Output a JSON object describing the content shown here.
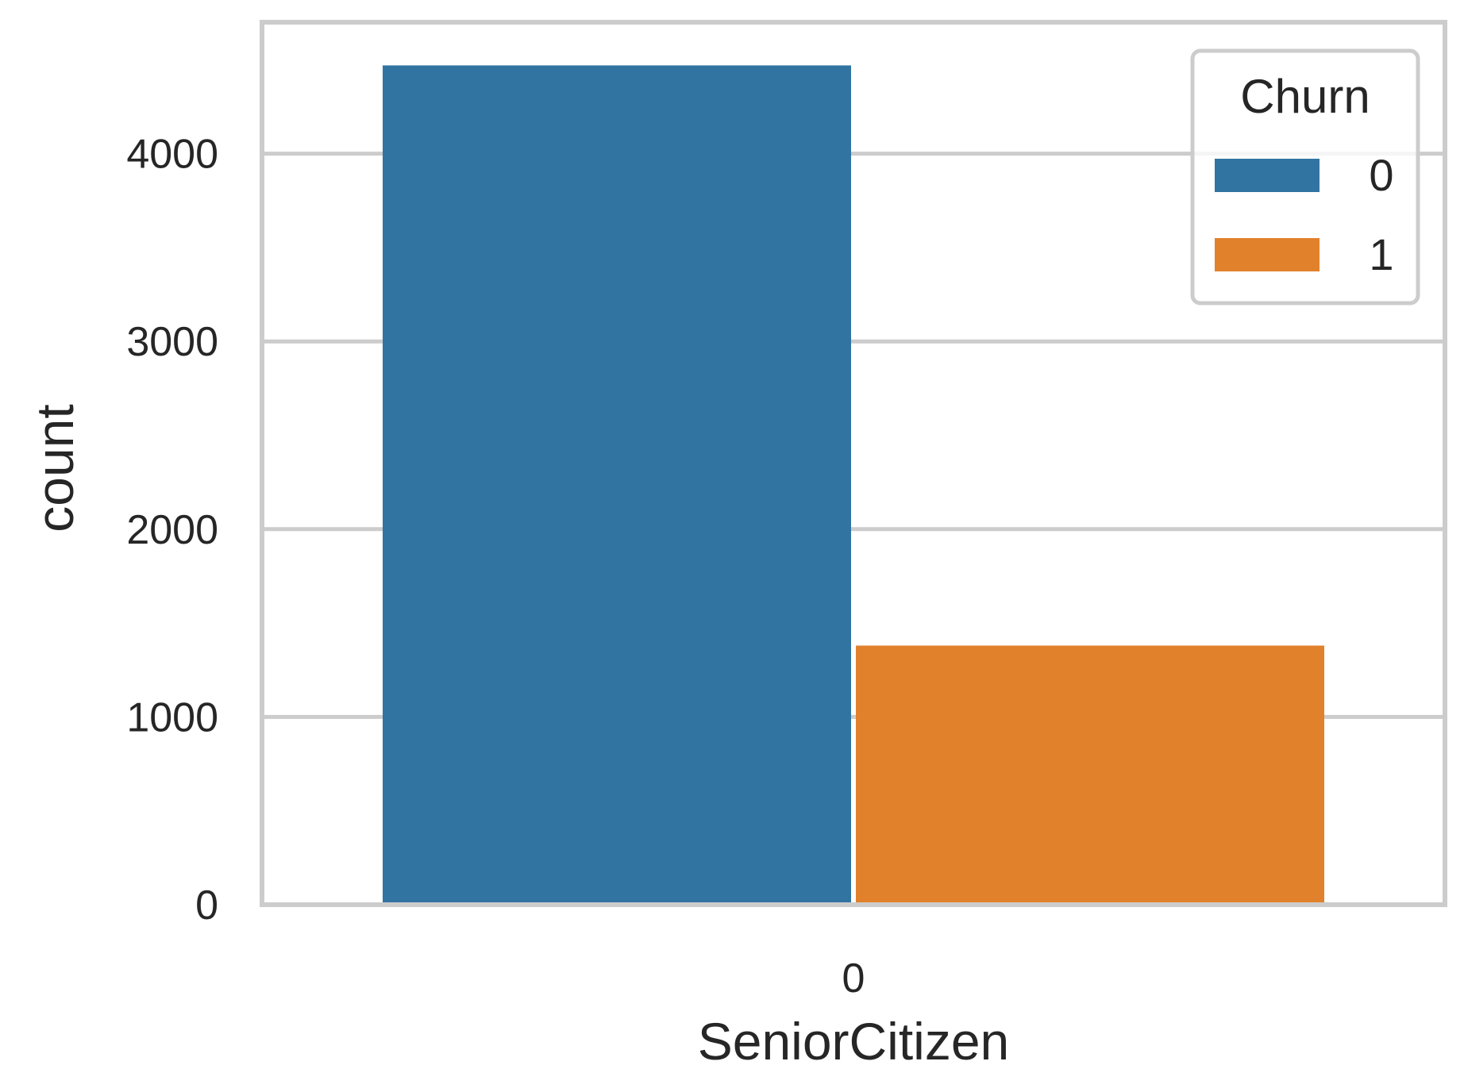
{
  "chart_data": {
    "type": "bar",
    "categories": [
      "0"
    ],
    "series": [
      {
        "name": "0",
        "values": [
          4470
        ],
        "color": "#3274a1"
      },
      {
        "name": "1",
        "values": [
          1380
        ],
        "color": "#e1812c"
      }
    ],
    "xlabel": "SeniorCitizen",
    "ylabel": "count",
    "yticks": [
      0,
      1000,
      2000,
      3000,
      4000
    ],
    "ylim": [
      0,
      4700
    ],
    "grid": "y",
    "legend": {
      "title": "Churn",
      "position": "top-right"
    },
    "colors": {
      "grid": "#cccccc",
      "spine": "#cccccc",
      "text": "#262626"
    }
  }
}
